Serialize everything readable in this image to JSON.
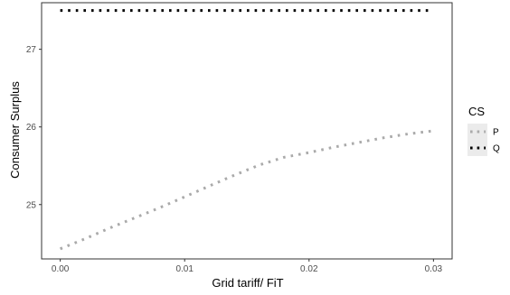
{
  "chart_data": {
    "type": "line",
    "title": "",
    "xlabel": "Grid tariff/ FiT",
    "ylabel": "Consumer Surplus",
    "xlim": [
      -0.0015,
      0.0315
    ],
    "ylim": [
      24.3,
      27.6
    ],
    "x_ticks": [
      0.0,
      0.01,
      0.02,
      0.03
    ],
    "x_tick_labels": [
      "0.00",
      "0.01",
      "0.02",
      "0.03"
    ],
    "y_ticks": [
      25,
      26,
      27
    ],
    "y_tick_labels": [
      "25",
      "26",
      "27"
    ],
    "grid": false,
    "line_style": "dotted",
    "legend": {
      "title": "CS",
      "position": "right"
    },
    "series": [
      {
        "name": "P",
        "color": "#aaaaaa",
        "x": [
          0.0,
          0.002,
          0.004,
          0.006,
          0.008,
          0.01,
          0.012,
          0.014,
          0.016,
          0.018,
          0.02,
          0.022,
          0.024,
          0.026,
          0.028,
          0.03
        ],
        "y": [
          24.43,
          24.56,
          24.7,
          24.83,
          24.96,
          25.1,
          25.24,
          25.38,
          25.51,
          25.61,
          25.67,
          25.74,
          25.8,
          25.86,
          25.91,
          25.95
        ]
      },
      {
        "name": "Q",
        "color": "#000000",
        "x": [
          0.0,
          0.002,
          0.004,
          0.006,
          0.008,
          0.01,
          0.012,
          0.014,
          0.016,
          0.018,
          0.02,
          0.022,
          0.024,
          0.026,
          0.028,
          0.03
        ],
        "y": [
          27.5,
          27.5,
          27.5,
          27.5,
          27.5,
          27.5,
          27.5,
          27.5,
          27.5,
          27.5,
          27.5,
          27.5,
          27.5,
          27.5,
          27.5,
          27.5
        ]
      }
    ]
  }
}
